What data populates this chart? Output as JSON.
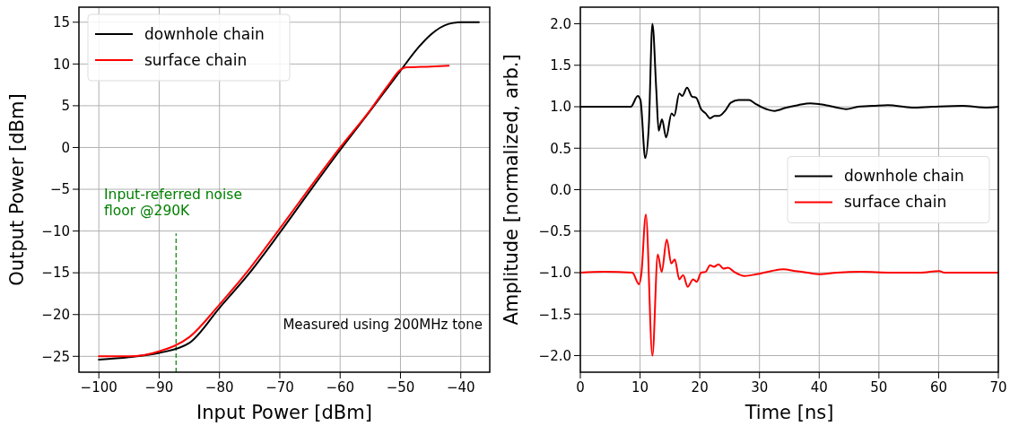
{
  "chart_data": [
    {
      "type": "line",
      "xlabel": "Input Power [dBm]",
      "ylabel": "Output Power [dBm]",
      "xlim": [
        -103.3,
        -35.2
      ],
      "ylim": [
        -26.9,
        16.8
      ],
      "xticks": [
        {
          "value": -100,
          "label": "−100"
        },
        {
          "value": -90,
          "label": "−90"
        },
        {
          "value": -80,
          "label": "−80"
        },
        {
          "value": -70,
          "label": "−70"
        },
        {
          "value": -60,
          "label": "−60"
        },
        {
          "value": -50,
          "label": "−50"
        },
        {
          "value": -40,
          "label": "−40"
        }
      ],
      "yticks": [
        {
          "value": -25,
          "label": "−25"
        },
        {
          "value": -20,
          "label": "−20"
        },
        {
          "value": -15,
          "label": "−15"
        },
        {
          "value": -10,
          "label": "−10"
        },
        {
          "value": -5,
          "label": "−5"
        },
        0,
        5,
        10,
        15
      ],
      "grid": true,
      "legend": "top left",
      "line_style": "solid",
      "series": [
        {
          "name": "downhole chain",
          "color": "#000000",
          "x": [
            -100,
            -95,
            -90,
            -85,
            -80,
            -75,
            -70,
            -65,
            -60,
            -55,
            -50,
            -47,
            -45,
            -42,
            -40,
            -37
          ],
          "values": [
            -25.4,
            -25.1,
            -24.6,
            -23.4,
            -19.2,
            -15.0,
            -10.2,
            -5.2,
            -0.3,
            4.4,
            9.2,
            12.0,
            13.5,
            14.8,
            15.0,
            15.0
          ]
        },
        {
          "name": "surface chain",
          "color": "#ff0000",
          "x": [
            -100,
            -95,
            -90,
            -85,
            -80,
            -75,
            -70,
            -65,
            -60,
            -55,
            -52,
            -50,
            -49,
            -45,
            -42
          ],
          "values": [
            -25.0,
            -25.0,
            -24.4,
            -22.7,
            -18.8,
            -14.5,
            -9.7,
            -4.8,
            0.0,
            4.5,
            7.5,
            9.3,
            9.6,
            9.7,
            9.8
          ]
        }
      ],
      "ref_lines": [
        {
          "axis": "x",
          "value": -87.2,
          "label": "Input-referred noise floor @290K",
          "color": "#008000",
          "line_style": "dashed"
        }
      ],
      "annotations": [
        "Measured using 200MHz tone"
      ]
    },
    {
      "type": "line",
      "xlabel": "Time [ns]",
      "ylabel": "Amplitude [normalized, arb.]",
      "xlim": [
        0,
        70
      ],
      "ylim": [
        -2.2,
        2.2
      ],
      "xticks": [
        0,
        10,
        20,
        30,
        40,
        50,
        60,
        70
      ],
      "yticks": [
        {
          "value": -2,
          "label": "−2.0"
        },
        {
          "value": -1.5,
          "label": "−1.5"
        },
        {
          "value": -1,
          "label": "−1.0"
        },
        {
          "value": -0.5,
          "label": "−0.5"
        },
        {
          "value": 0,
          "label": "0.0"
        },
        {
          "value": 0.5,
          "label": "0.5"
        },
        {
          "value": 1,
          "label": "1.0"
        },
        {
          "value": 1.5,
          "label": "1.5"
        },
        {
          "value": 2,
          "label": "2.0"
        }
      ],
      "grid": true,
      "legend": "right",
      "line_style": "solid",
      "series": [
        {
          "name": "downhole chain",
          "color": "#000000",
          "x": [
            0,
            8.46,
            9.61,
            10.07,
            10.87,
            11.47,
            12.07,
            12.72,
            13.12,
            13.67,
            14.37,
            15.27,
            15.72,
            16.57,
            17.07,
            17.87,
            18.73,
            19.38,
            20.23,
            20.98,
            21.73,
            22.48,
            23.23,
            24.23,
            25.23,
            26.49,
            28.24,
            29.24,
            30.49,
            32.5,
            34.5,
            36.5,
            38.5,
            41,
            43,
            44.5,
            46.5,
            49,
            51.5,
            55.5,
            59,
            64,
            68,
            70
          ],
          "values": [
            1.0,
            1.0,
            1.13,
            1.08,
            0.38,
            0.77,
            2.0,
            1.2,
            0.71,
            0.85,
            0.63,
            0.92,
            0.89,
            1.16,
            1.13,
            1.23,
            1.12,
            1.11,
            0.97,
            0.92,
            0.86,
            0.89,
            0.89,
            0.95,
            1.05,
            1.08,
            1.08,
            1.04,
            0.99,
            0.95,
            0.99,
            1.02,
            1.04,
            1.02,
            0.99,
            0.97,
            1.0,
            1.01,
            1.02,
            0.99,
            1.0,
            1.01,
            0.99,
            1.0
          ]
        },
        {
          "name": "surface chain",
          "color": "#ff0000",
          "x": [
            0,
            3.97,
            8.71,
            9.81,
            10.21,
            10.97,
            12.07,
            12.97,
            13.62,
            14.47,
            15.22,
            15.82,
            16.57,
            17.22,
            17.97,
            18.88,
            19.48,
            20.23,
            20.98,
            21.73,
            22.38,
            23.13,
            23.98,
            24.73,
            25.74,
            27.49,
            29.49,
            32,
            34,
            36,
            38,
            40,
            43,
            47,
            52,
            57,
            60.1,
            61,
            65,
            70
          ],
          "values": [
            -1.0,
            -0.99,
            -1.0,
            -1.14,
            -1.02,
            -0.3,
            -2.0,
            -0.78,
            -0.99,
            -0.6,
            -0.89,
            -0.84,
            -1.08,
            -1.03,
            -1.17,
            -1.08,
            -1.11,
            -1.0,
            -0.99,
            -0.91,
            -0.93,
            -0.9,
            -0.95,
            -0.94,
            -0.99,
            -1.04,
            -1.02,
            -0.98,
            -0.96,
            -0.98,
            -1.0,
            -1.02,
            -1.0,
            -0.99,
            -1.0,
            -1.0,
            -0.98,
            -1.0,
            -1.0,
            -1.0
          ]
        }
      ]
    }
  ]
}
